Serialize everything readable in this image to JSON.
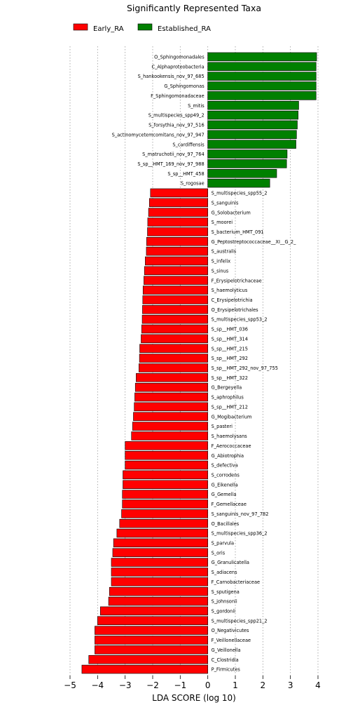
{
  "chart_data": {
    "type": "bar",
    "orientation": "horizontal",
    "title": "Significantly Represented Taxa",
    "xlabel": "LDA SCORE (log 10)",
    "xlim": [
      -5,
      4
    ],
    "xticks": [
      -5,
      -4,
      -3,
      -2,
      -1,
      0,
      1,
      2,
      3,
      4
    ],
    "xtick_labels": [
      "−5",
      "−4",
      "−3",
      "−2",
      "−1",
      "0",
      "1",
      "2",
      "3",
      "4"
    ],
    "grid": "vertical dotted",
    "legend_position": "top-left",
    "colors": {
      "Early_RA": "#ff0000",
      "Established_RA": "#008000"
    },
    "legend": [
      {
        "name": "Early_RA",
        "color": "#ff0000"
      },
      {
        "name": "Established_RA",
        "color": "#008000"
      }
    ],
    "bars": [
      {
        "label": "O_Sphingomonadales",
        "value": 3.95,
        "group": "Established_RA"
      },
      {
        "label": "C_Alphaproteobacteria",
        "value": 3.93,
        "group": "Established_RA"
      },
      {
        "label": "S_hankookensis_nov_97_685",
        "value": 3.93,
        "group": "Established_RA"
      },
      {
        "label": "G_Sphingomonas",
        "value": 3.93,
        "group": "Established_RA"
      },
      {
        "label": "F_Sphingomonadaceae",
        "value": 3.93,
        "group": "Established_RA"
      },
      {
        "label": "S_mitis",
        "value": 3.3,
        "group": "Established_RA"
      },
      {
        "label": "S_multispecies_spp49_2",
        "value": 3.28,
        "group": "Established_RA"
      },
      {
        "label": "S_forsythia_nov_97_516",
        "value": 3.25,
        "group": "Established_RA"
      },
      {
        "label": "S_actinomycetemcomitans_nov_97_947",
        "value": 3.22,
        "group": "Established_RA"
      },
      {
        "label": "S_cardiffensis",
        "value": 3.2,
        "group": "Established_RA"
      },
      {
        "label": "S_matruchotii_nov_97_764",
        "value": 2.88,
        "group": "Established_RA"
      },
      {
        "label": "S_sp__HMT_169_nov_97_988",
        "value": 2.86,
        "group": "Established_RA"
      },
      {
        "label": "S_sp__HMT_458",
        "value": 2.5,
        "group": "Established_RA"
      },
      {
        "label": "S_rogosae",
        "value": 2.25,
        "group": "Established_RA"
      },
      {
        "label": "S_multispecies_spp55_2",
        "value": -2.08,
        "group": "Early_RA"
      },
      {
        "label": "S_sanguinis",
        "value": -2.12,
        "group": "Early_RA"
      },
      {
        "label": "G_Solobacterium",
        "value": -2.15,
        "group": "Early_RA"
      },
      {
        "label": "S_moorei",
        "value": -2.18,
        "group": "Early_RA"
      },
      {
        "label": "S_bacterium_HMT_091",
        "value": -2.19,
        "group": "Early_RA"
      },
      {
        "label": "G_Peptostreptococcaceae__XI__G_2_",
        "value": -2.22,
        "group": "Early_RA"
      },
      {
        "label": "S_australis",
        "value": -2.23,
        "group": "Early_RA"
      },
      {
        "label": "S_infelix",
        "value": -2.27,
        "group": "Early_RA"
      },
      {
        "label": "S_sinus",
        "value": -2.3,
        "group": "Early_RA"
      },
      {
        "label": "F_Erysipelotrichaceae",
        "value": -2.32,
        "group": "Early_RA"
      },
      {
        "label": "S_haemolyticus",
        "value": -2.35,
        "group": "Early_RA"
      },
      {
        "label": "C_Erysipelotrichia",
        "value": -2.36,
        "group": "Early_RA"
      },
      {
        "label": "O_Erysipelotrichales",
        "value": -2.37,
        "group": "Early_RA"
      },
      {
        "label": "S_multispecies_spp53_2",
        "value": -2.38,
        "group": "Early_RA"
      },
      {
        "label": "S_sp__HMT_036",
        "value": -2.4,
        "group": "Early_RA"
      },
      {
        "label": "S_sp__HMT_314",
        "value": -2.42,
        "group": "Early_RA"
      },
      {
        "label": "S_sp__HMT_215",
        "value": -2.47,
        "group": "Early_RA"
      },
      {
        "label": "S_sp__HMT_292",
        "value": -2.48,
        "group": "Early_RA"
      },
      {
        "label": "S_sp__HMT_292_nov_97_755",
        "value": -2.5,
        "group": "Early_RA"
      },
      {
        "label": "S_sp__HMT_322",
        "value": -2.6,
        "group": "Early_RA"
      },
      {
        "label": "G_Bergeyella",
        "value": -2.63,
        "group": "Early_RA"
      },
      {
        "label": "S_aphrophilus",
        "value": -2.65,
        "group": "Early_RA"
      },
      {
        "label": "S_sp__HMT_212",
        "value": -2.67,
        "group": "Early_RA"
      },
      {
        "label": "G_Mogibacterium",
        "value": -2.7,
        "group": "Early_RA"
      },
      {
        "label": "S_pasteri",
        "value": -2.73,
        "group": "Early_RA"
      },
      {
        "label": "S_haemolysans",
        "value": -2.77,
        "group": "Early_RA"
      },
      {
        "label": "F_Aerococcaceae",
        "value": -3.0,
        "group": "Early_RA"
      },
      {
        "label": "G_Abiotrophia",
        "value": -3.0,
        "group": "Early_RA"
      },
      {
        "label": "S_defectiva",
        "value": -3.0,
        "group": "Early_RA"
      },
      {
        "label": "S_corrodens",
        "value": -3.08,
        "group": "Early_RA"
      },
      {
        "label": "G_Eikenella",
        "value": -3.08,
        "group": "Early_RA"
      },
      {
        "label": "G_Gemella",
        "value": -3.1,
        "group": "Early_RA"
      },
      {
        "label": "F_Gemellaceae",
        "value": -3.1,
        "group": "Early_RA"
      },
      {
        "label": "S_sanguinis_nov_97_782",
        "value": -3.13,
        "group": "Early_RA"
      },
      {
        "label": "O_Bacillales",
        "value": -3.2,
        "group": "Early_RA"
      },
      {
        "label": "S_multispecies_spp36_2",
        "value": -3.3,
        "group": "Early_RA"
      },
      {
        "label": "S_parvula",
        "value": -3.42,
        "group": "Early_RA"
      },
      {
        "label": "S_oris",
        "value": -3.45,
        "group": "Early_RA"
      },
      {
        "label": "G_Granulicatella",
        "value": -3.5,
        "group": "Early_RA"
      },
      {
        "label": "S_adiacens",
        "value": -3.5,
        "group": "Early_RA"
      },
      {
        "label": "F_Carnobacteriaceae",
        "value": -3.5,
        "group": "Early_RA"
      },
      {
        "label": "S_sputigena",
        "value": -3.57,
        "group": "Early_RA"
      },
      {
        "label": "S_johnsonii",
        "value": -3.6,
        "group": "Early_RA"
      },
      {
        "label": "S_gordonii",
        "value": -3.9,
        "group": "Early_RA"
      },
      {
        "label": "S_multispecies_spp21_2",
        "value": -4.0,
        "group": "Early_RA"
      },
      {
        "label": "O_Negativicutes",
        "value": -4.1,
        "group": "Early_RA"
      },
      {
        "label": "F_Veillonellaceae",
        "value": -4.1,
        "group": "Early_RA"
      },
      {
        "label": "G_Veillonella",
        "value": -4.1,
        "group": "Early_RA"
      },
      {
        "label": "C_Clostridia",
        "value": -4.32,
        "group": "Early_RA"
      },
      {
        "label": "P_Firmicutes",
        "value": -4.57,
        "group": "Early_RA"
      }
    ]
  }
}
